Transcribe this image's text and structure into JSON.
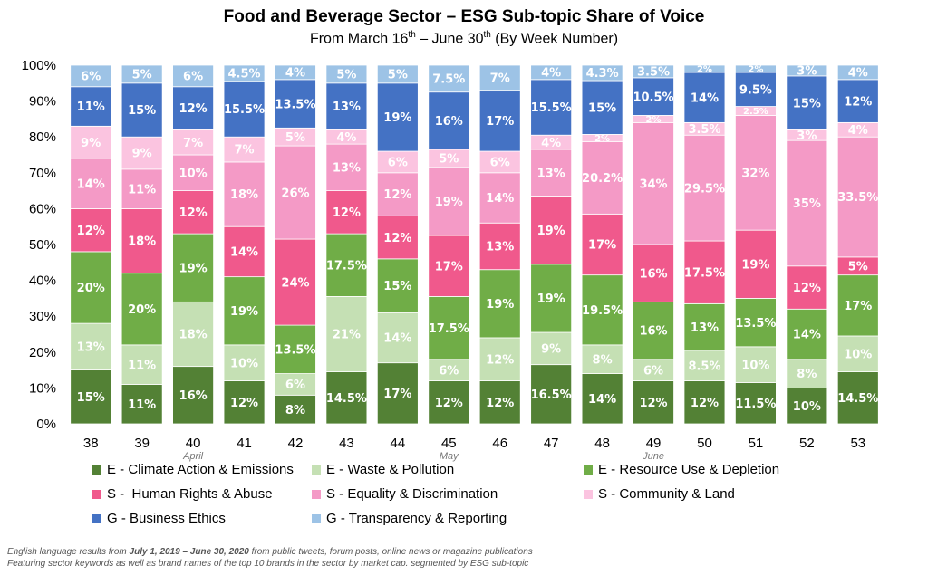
{
  "title": "Food and Beverage Sector – ESG Sub-topic Share of Voice",
  "subtitle": {
    "prefix": "From March 16",
    "sup1": "th",
    "middle": " – June 30",
    "sup2": "th",
    "suffix": " (By Week Number)"
  },
  "footnote": {
    "line1_prefix": "English language results from ",
    "line1_bold": "July 1, 2019 – June 30, 2020",
    "line1_suffix": " from public tweets, forum posts, online news or magazine publications",
    "line2": "Featuring sector keywords as well as brand names of the top 10 brands in the sector by market cap. segmented by ESG sub-topic"
  },
  "chart_data": {
    "type": "bar",
    "stacked": true,
    "categories": [
      "38",
      "39",
      "40",
      "41",
      "42",
      "43",
      "44",
      "45",
      "46",
      "47",
      "48",
      "49",
      "50",
      "51",
      "52",
      "53"
    ],
    "month_annotations": [
      {
        "category": "40",
        "label": "April"
      },
      {
        "category": "45",
        "label": "May"
      },
      {
        "category": "49",
        "label": "June"
      }
    ],
    "ylim": [
      0,
      100
    ],
    "y_ticks": [
      "0%",
      "10%",
      "20%",
      "30%",
      "40%",
      "50%",
      "60%",
      "70%",
      "80%",
      "90%",
      "100%"
    ],
    "grid": false,
    "legend_position": "bottom",
    "series": [
      {
        "name": "E - Climate Action & Emissions",
        "color": "#538135",
        "text_color": "#ffffff",
        "values": [
          15,
          11,
          16,
          12,
          8,
          14.5,
          17,
          12,
          12,
          16.5,
          14,
          12,
          12,
          11.5,
          10,
          14.5
        ],
        "labels": [
          "15%",
          "11%",
          "16%",
          "12%",
          "8%",
          "14.5%",
          "17%",
          "12%",
          "12%",
          "16.5%",
          "14%",
          "12%",
          "12%",
          "11.5%",
          "10%",
          "14.5%"
        ]
      },
      {
        "name": "E - Waste & Pollution",
        "color": "#c5e0b4",
        "text_color": "#ffffff",
        "values": [
          13,
          11,
          18,
          10,
          6,
          21,
          14,
          6,
          12,
          9,
          8,
          6,
          8.5,
          10,
          8,
          10
        ],
        "labels": [
          "13%",
          "11%",
          "18%",
          "10%",
          "6%",
          "21%",
          "14%",
          "6%",
          "12%",
          "9%",
          "8%",
          "6%",
          "8.5%",
          "10%",
          "8%",
          "10%"
        ]
      },
      {
        "name": "E - Resource Use & Depletion",
        "color": "#70ad47",
        "text_color": "#ffffff",
        "values": [
          20,
          20,
          19,
          19,
          13.5,
          17.5,
          15,
          17.5,
          19,
          19,
          19.5,
          16,
          13,
          13.5,
          14,
          17
        ],
        "labels": [
          "20%",
          "20%",
          "19%",
          "19%",
          "13.5%",
          "17.5%",
          "15%",
          "17.5%",
          "19%",
          "19%",
          "19.5%",
          "16%",
          "13%",
          "13.5%",
          "14%",
          "17%"
        ]
      },
      {
        "name": "S -  Human Rights & Abuse",
        "color": "#f0598c",
        "text_color": "#ffffff",
        "values": [
          12,
          18,
          12,
          14,
          24,
          12,
          12,
          17,
          13,
          19,
          17,
          16,
          17.5,
          19,
          12,
          5
        ],
        "labels": [
          "12%",
          "18%",
          "12%",
          "14%",
          "24%",
          "12%",
          "12%",
          "17%",
          "13%",
          "19%",
          "17%",
          "16%",
          "17.5%",
          "19%",
          "12%",
          "5%"
        ]
      },
      {
        "name": "S - Equality & Discrimination",
        "color": "#f49ac6",
        "text_color": "#ffffff",
        "values": [
          14,
          11,
          10,
          18,
          26,
          13,
          12,
          19,
          14,
          13,
          20.2,
          34,
          29.5,
          32,
          35,
          33.5
        ],
        "labels": [
          "14%",
          "11%",
          "10%",
          "18%",
          "26%",
          "13%",
          "12%",
          "19%",
          "14%",
          "13%",
          "20.2%",
          "34%",
          "29.5%",
          "32%",
          "35%",
          "33.5%"
        ]
      },
      {
        "name": "S - Community & Land",
        "color": "#fbc4e0",
        "text_color": "#ffffff",
        "values": [
          9,
          9,
          7,
          7,
          5,
          4,
          6,
          5,
          6,
          4,
          2,
          2,
          3.5,
          2.5,
          3,
          4
        ],
        "labels": [
          "9%",
          "9%",
          "7%",
          "7%",
          "5%",
          "4%",
          "6%",
          "5%",
          "6%",
          "4%",
          "2%",
          "2%",
          "3.5%",
          "2.5%",
          "3%",
          "4%"
        ]
      },
      {
        "name": "G - Business Ethics",
        "color": "#4472c4",
        "text_color": "#ffffff",
        "values": [
          11,
          15,
          12,
          15.5,
          13.5,
          13,
          19,
          16,
          17,
          15.5,
          15,
          10.5,
          14,
          9.5,
          15,
          12
        ],
        "labels": [
          "11%",
          "15%",
          "12%",
          "15.5%",
          "13.5%",
          "13%",
          "19%",
          "16%",
          "17%",
          "15.5%",
          "15%",
          "10.5%",
          "14%",
          "9.5%",
          "15%",
          "12%"
        ]
      },
      {
        "name": "G - Transparency & Reporting",
        "color": "#9dc3e6",
        "text_color": "#ffffff",
        "values": [
          6,
          5,
          6,
          4.5,
          4,
          5,
          5,
          7.5,
          7,
          4,
          4.3,
          3.5,
          2,
          2,
          3,
          4
        ],
        "labels": [
          "6%",
          "5%",
          "6%",
          "4.5%",
          "4%",
          "5%",
          "5%",
          "7.5%",
          "7%",
          "4%",
          "4.3%",
          "3.5%",
          "2%",
          "2%",
          "3%",
          "4%"
        ]
      }
    ]
  }
}
